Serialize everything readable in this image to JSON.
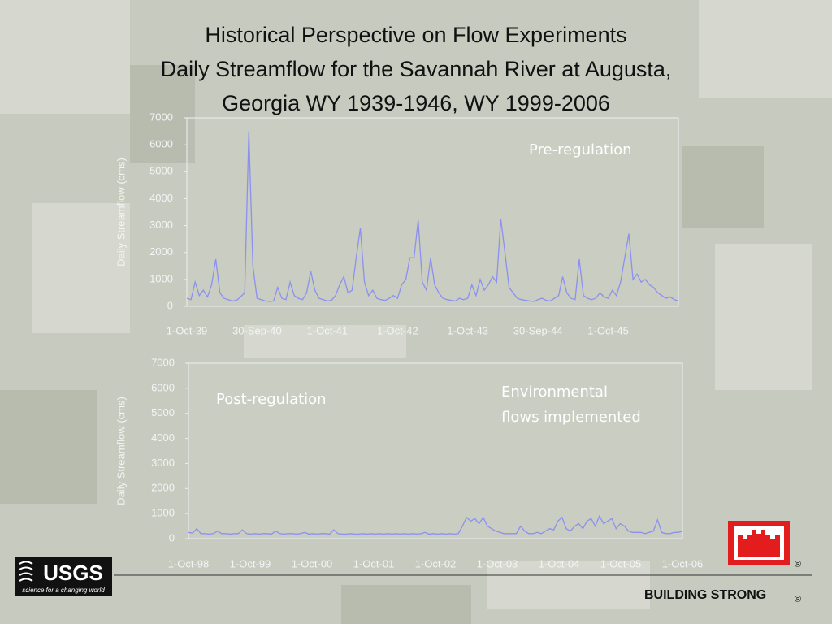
{
  "title": [
    "Historical Perspective on Flow Experiments",
    "Daily Streamflow for the Savannah River at Augusta,",
    "Georgia WY 1939-1946, WY 1999-2006"
  ],
  "chart_data": [
    {
      "type": "line",
      "ylabel": "Daily Streamflow  (cms)",
      "annotations": [
        [
          "Pre-regulation"
        ]
      ],
      "xticks": [
        "1-Oct-39",
        "30-Sep-40",
        "1-Oct-41",
        "1-Oct-42",
        "1-Oct-43",
        "30-Sep-44",
        "1-Oct-45"
      ],
      "ylim": [
        0,
        7000
      ],
      "yticks": [
        0,
        1000,
        2000,
        3000,
        4000,
        5000,
        6000,
        7000
      ],
      "series": [
        {
          "color": "#8c90f0",
          "values": [
            300,
            250,
            900,
            400,
            600,
            350,
            800,
            1750,
            500,
            300,
            250,
            200,
            220,
            350,
            500,
            6500,
            1500,
            300,
            250,
            200,
            180,
            200,
            700,
            300,
            250,
            900,
            400,
            300,
            250,
            500,
            1300,
            600,
            300,
            250,
            200,
            220,
            400,
            800,
            1100,
            500,
            600,
            1800,
            2900,
            900,
            400,
            600,
            300,
            250,
            220,
            300,
            400,
            300,
            800,
            1000,
            1800,
            1800,
            3200,
            900,
            600,
            1800,
            800,
            500,
            300,
            250,
            220,
            200,
            300,
            250,
            300,
            800,
            400,
            1000,
            600,
            800,
            1100,
            900,
            3250,
            2000,
            700,
            500,
            300,
            250,
            220,
            200,
            180,
            250,
            300,
            220,
            200,
            300,
            400,
            1100,
            500,
            300,
            250,
            1750,
            400,
            300,
            250,
            300,
            500,
            350,
            300,
            600,
            400,
            900,
            1800,
            2700,
            1000,
            1200,
            900,
            1000,
            800,
            700,
            500,
            400,
            300,
            350,
            250,
            200
          ]
        }
      ]
    },
    {
      "type": "line",
      "ylabel": "Daily Streamflow  (cms)",
      "annotations": [
        [
          "Post-regulation"
        ],
        [
          "Environmental",
          "flows implemented"
        ]
      ],
      "xticks": [
        "1-Oct-98",
        "1-Oct-99",
        "1-Oct-00",
        "1-Oct-01",
        "1-Oct-02",
        "1-Oct-03",
        "1-Oct-04",
        "1-Oct-05",
        "1-Oct-06"
      ],
      "ylim": [
        0,
        7000
      ],
      "yticks": [
        0,
        1000,
        2000,
        3000,
        4000,
        5000,
        6000,
        7000
      ],
      "series": [
        {
          "color": "#8c90f0",
          "values": [
            250,
            220,
            400,
            200,
            200,
            180,
            200,
            300,
            200,
            200,
            180,
            200,
            200,
            350,
            200,
            180,
            200,
            180,
            200,
            200,
            180,
            300,
            200,
            180,
            200,
            200,
            180,
            200,
            250,
            180,
            200,
            180,
            200,
            200,
            180,
            350,
            200,
            180,
            180,
            200,
            180,
            180,
            200,
            180,
            200,
            180,
            200,
            180,
            200,
            180,
            200,
            180,
            200,
            180,
            200,
            180,
            200,
            250,
            180,
            200,
            180,
            200,
            180,
            200,
            180,
            200,
            500,
            850,
            700,
            800,
            600,
            850,
            500,
            400,
            300,
            250,
            200,
            200,
            200,
            200,
            500,
            300,
            200,
            200,
            250,
            200,
            300,
            400,
            350,
            700,
            850,
            400,
            300,
            500,
            600,
            400,
            700,
            800,
            500,
            900,
            600,
            700,
            800,
            400,
            600,
            500,
            300,
            250,
            250,
            250,
            200,
            250,
            300,
            750,
            250,
            200,
            200,
            250,
            250,
            300
          ]
        }
      ]
    }
  ],
  "footer": {
    "logo": "USGS",
    "tagline": "science for a changing world",
    "brand": "BUILDING STRONG",
    "reg": "®"
  }
}
